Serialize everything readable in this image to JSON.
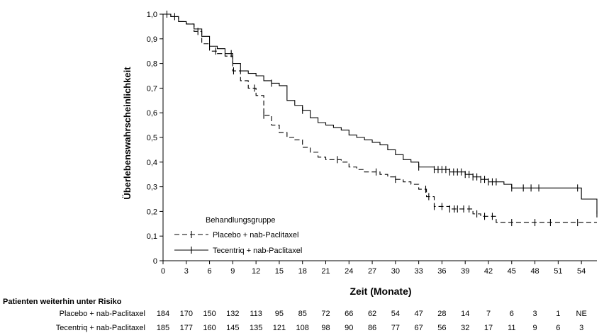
{
  "chart_data": {
    "type": "line",
    "title": "",
    "xlabel": "Zeit (Monate)",
    "ylabel": "Überlebenswahrscheinlichkeit",
    "xlim": [
      0,
      56
    ],
    "ylim": [
      0,
      1
    ],
    "x_ticks": [
      0,
      3,
      6,
      9,
      12,
      15,
      18,
      21,
      24,
      27,
      30,
      33,
      36,
      39,
      42,
      45,
      48,
      51,
      54
    ],
    "y_ticks": [
      0,
      0.1,
      0.2,
      0.3,
      0.4,
      0.5,
      0.6,
      0.7,
      0.8,
      0.9,
      1.0
    ],
    "y_tick_labels": [
      "0",
      "0,1",
      "0,2",
      "0,3",
      "0,4",
      "0,5",
      "0,6",
      "0,7",
      "0,8",
      "0,9",
      "1,0"
    ],
    "legend": {
      "title": "Behandlungsgruppe",
      "placement": "bottom-left"
    },
    "series": [
      {
        "name": "Placebo + nab-Paclitaxel",
        "style": "dashed",
        "color": "#000000",
        "x": [
          0,
          1,
          2,
          3,
          4,
          5,
          6,
          7,
          8,
          9,
          10,
          11,
          12,
          13,
          14,
          15,
          16,
          17,
          18,
          19,
          20,
          21,
          22,
          23,
          24,
          25,
          26,
          27,
          28,
          29,
          30,
          31,
          32,
          33,
          34,
          35,
          36,
          37,
          38,
          39,
          40,
          41,
          42,
          43,
          56
        ],
        "y": [
          1.0,
          0.99,
          0.97,
          0.96,
          0.93,
          0.88,
          0.85,
          0.84,
          0.83,
          0.77,
          0.73,
          0.7,
          0.67,
          0.59,
          0.55,
          0.52,
          0.5,
          0.49,
          0.46,
          0.44,
          0.42,
          0.41,
          0.41,
          0.4,
          0.38,
          0.37,
          0.36,
          0.36,
          0.35,
          0.34,
          0.33,
          0.32,
          0.31,
          0.29,
          0.26,
          0.22,
          0.22,
          0.21,
          0.21,
          0.21,
          0.19,
          0.18,
          0.18,
          0.155,
          0.155
        ],
        "censor_x": [
          4.5,
          6.8,
          9.1,
          11.8,
          13.0,
          22.5,
          27.5,
          30.0,
          33.9,
          34.3,
          35.0,
          36.0,
          37.0,
          37.6,
          38.0,
          38.8,
          39.5,
          40.5,
          41.5,
          42.5,
          45.0,
          48.0,
          50.0,
          53.5
        ]
      },
      {
        "name": "Tecentriq + nab-Paclitaxel",
        "style": "solid",
        "color": "#000000",
        "x": [
          0,
          1,
          2,
          3,
          4,
          5,
          6,
          7,
          8,
          9,
          10,
          11,
          12,
          13,
          14,
          15,
          16,
          17,
          18,
          19,
          20,
          21,
          22,
          23,
          24,
          25,
          26,
          27,
          28,
          29,
          30,
          31,
          32,
          33,
          34,
          35,
          36,
          37,
          38,
          39,
          40,
          41,
          42,
          43,
          44,
          45,
          51,
          54,
          56
        ],
        "y": [
          1.0,
          0.99,
          0.97,
          0.96,
          0.94,
          0.91,
          0.87,
          0.86,
          0.84,
          0.8,
          0.77,
          0.76,
          0.75,
          0.73,
          0.72,
          0.71,
          0.65,
          0.63,
          0.61,
          0.58,
          0.56,
          0.55,
          0.54,
          0.53,
          0.51,
          0.5,
          0.49,
          0.48,
          0.47,
          0.45,
          0.43,
          0.41,
          0.4,
          0.38,
          0.38,
          0.37,
          0.37,
          0.36,
          0.36,
          0.35,
          0.34,
          0.33,
          0.32,
          0.32,
          0.31,
          0.295,
          0.295,
          0.25,
          0.19
        ],
        "censor_x": [
          0.5,
          1.5,
          8.8,
          14.0,
          18.0,
          33.0,
          35.0,
          35.5,
          36.0,
          36.5,
          37.0,
          37.5,
          38.0,
          38.5,
          39.0,
          39.5,
          40.0,
          40.5,
          41.0,
          41.5,
          42.0,
          42.5,
          43.0,
          45.0,
          46.5,
          47.5,
          48.5,
          53.5,
          56.0
        ]
      }
    ],
    "risk_table": {
      "header": "Patienten weiterhin unter Risiko",
      "rows": [
        {
          "label": "Placebo + nab-Paclitaxel",
          "values": [
            "184",
            "170",
            "150",
            "132",
            "113",
            "95",
            "85",
            "72",
            "66",
            "62",
            "54",
            "47",
            "28",
            "14",
            "7",
            "6",
            "3",
            "1",
            "NE"
          ]
        },
        {
          "label": "Tecentriq + nab-Paclitaxel",
          "values": [
            "185",
            "177",
            "160",
            "145",
            "135",
            "121",
            "108",
            "98",
            "90",
            "86",
            "77",
            "67",
            "56",
            "32",
            "17",
            "11",
            "9",
            "6",
            "3"
          ]
        }
      ]
    }
  }
}
